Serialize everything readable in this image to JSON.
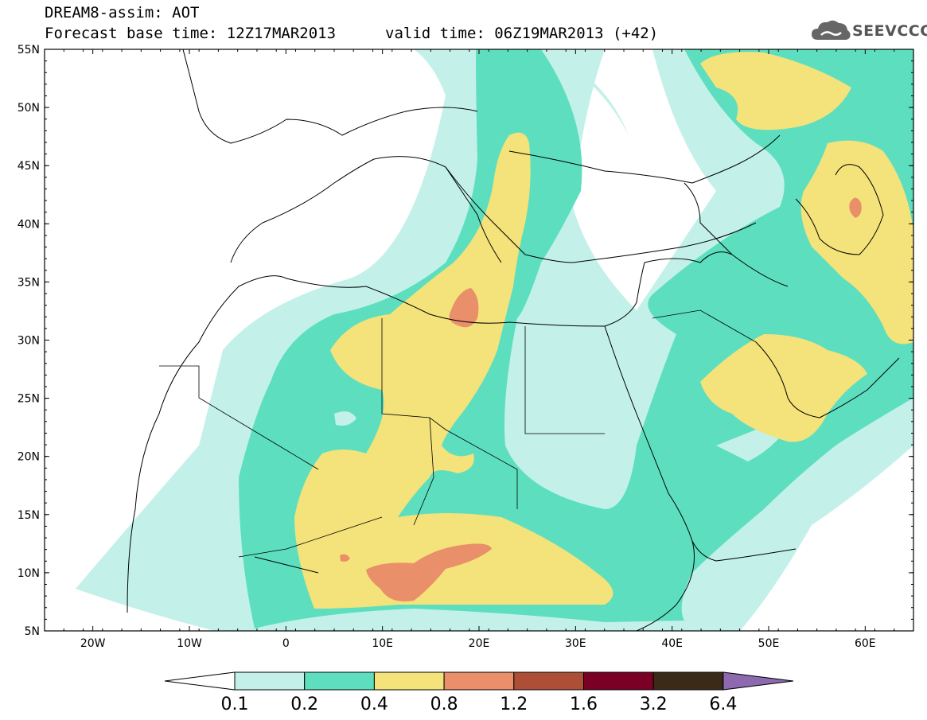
{
  "header": {
    "title": "DREAM8-assim: AOT",
    "subtitle": "Forecast base time: 12Z17MAR2013",
    "valid_time": "valid time: 06Z19MAR2013 (+42)"
  },
  "logo": {
    "text": "SEEVCCC",
    "icon": "cloud-icon"
  },
  "axes": {
    "lon_range": [
      -25,
      65
    ],
    "lat_range": [
      5,
      55
    ],
    "lat_labels": [
      "55N",
      "50N",
      "45N",
      "40N",
      "35N",
      "30N",
      "25N",
      "20N",
      "15N",
      "10N",
      "5N"
    ],
    "lon_labels": [
      "20W",
      "10W",
      "0",
      "10E",
      "20E",
      "30E",
      "40E",
      "50E",
      "60E"
    ]
  },
  "colorbar": {
    "labels": [
      "0.1",
      "0.2",
      "0.4",
      "0.8",
      "1.2",
      "1.6",
      "3.2",
      "6.4"
    ],
    "colors": [
      "#ffffff",
      "#c3f1ea",
      "#5ddfbf",
      "#f4e27a",
      "#e98f6a",
      "#ad4f37",
      "#7a0026",
      "#3c2a18",
      "#8d69b0"
    ]
  },
  "map_colors": {
    "level_0_1": "#c3f1ea",
    "level_0_2": "#5ddfbf",
    "level_0_4": "#f4e27a",
    "level_0_8": "#e98f6a",
    "coastline": "#000000"
  }
}
